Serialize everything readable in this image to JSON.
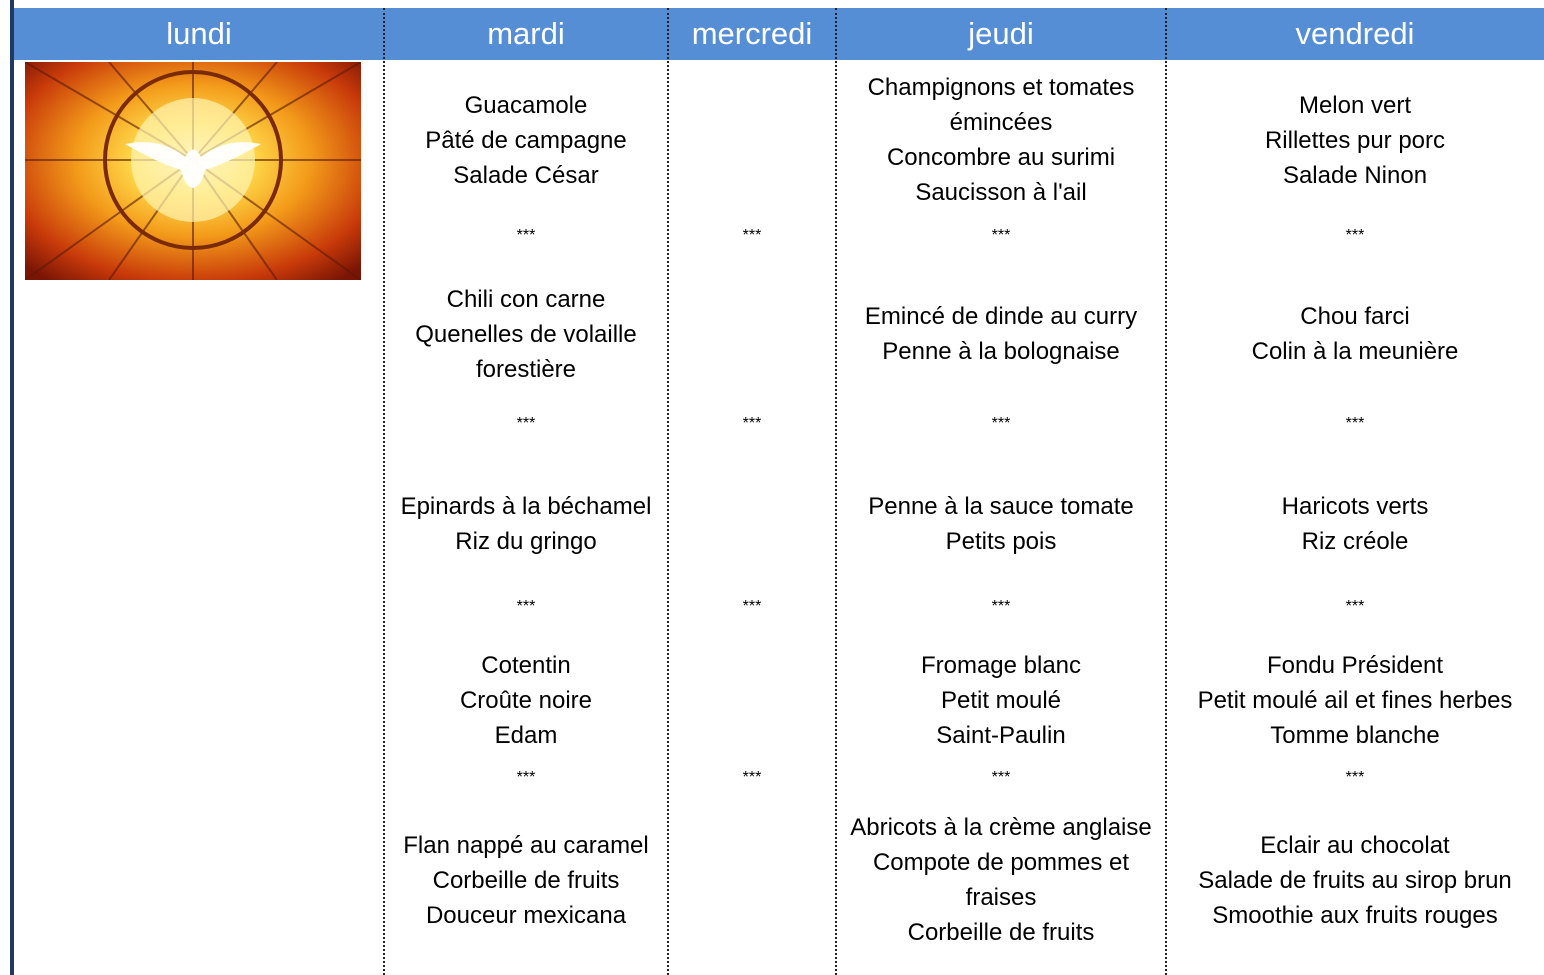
{
  "header": {
    "days": [
      "lundi",
      "mardi",
      "mercredi",
      "jeudi",
      "vendredi"
    ]
  },
  "columns": [
    {
      "courses": [],
      "separators": []
    },
    {
      "courses": [
        [
          "Guacamole",
          "Pâté de campagne",
          "Salade César"
        ],
        [
          "Chili con carne",
          "Quenelles de volaille forestière"
        ],
        [
          "Epinards à la béchamel",
          "Riz du gringo"
        ],
        [
          "Cotentin",
          "Croûte noire",
          "Edam"
        ],
        [
          "Flan nappé au caramel",
          "Corbeille de fruits",
          "Douceur mexicana"
        ]
      ],
      "separators": [
        "***",
        "***",
        "***",
        "***"
      ]
    },
    {
      "courses": [
        [],
        [],
        [],
        [],
        []
      ],
      "separators": [
        "***",
        "***",
        "***",
        "***"
      ]
    },
    {
      "courses": [
        [
          "Champignons et tomates émincées",
          "Concombre au surimi",
          "Saucisson à l'ail"
        ],
        [
          "Emincé de dinde au curry",
          "Penne à la bolognaise"
        ],
        [
          "Penne à la sauce tomate",
          "Petits pois"
        ],
        [
          "Fromage blanc",
          "Petit moulé",
          "Saint-Paulin"
        ],
        [
          "Abricots à la crème anglaise",
          "Compote de pommes et fraises",
          "Corbeille de fruits"
        ]
      ],
      "separators": [
        "***",
        "***",
        "***",
        "***"
      ]
    },
    {
      "courses": [
        [
          "Melon vert",
          "Rillettes pur porc",
          "Salade Ninon"
        ],
        [
          "Chou farci",
          "Colin à la meunière"
        ],
        [
          "Haricots verts",
          "Riz créole"
        ],
        [
          "Fondu Président",
          "Petit moulé ail et fines herbes",
          "Tomme blanche"
        ],
        [
          "Eclair au chocolat",
          "Salade de fruits au sirop brun",
          "Smoothie aux fruits rouges"
        ]
      ],
      "separators": [
        "***",
        "***",
        "***",
        "***"
      ]
    }
  ]
}
